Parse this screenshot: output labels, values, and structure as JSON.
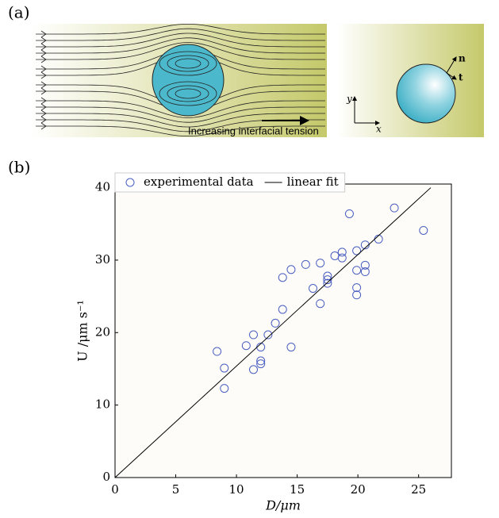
{
  "figure": {
    "panel_a": "(a)",
    "panel_b": "(b)",
    "arrow_text": "Increasing interfacial tension",
    "normal": "n",
    "tangent": "t",
    "y_axis": "y",
    "x_axis": "x"
  },
  "chart_data": {
    "type": "scatter",
    "xlabel": "D/μm",
    "ylabel": "U /μm s⁻¹",
    "xlim": [
      0,
      27.7
    ],
    "ylim": [
      0,
      40.5
    ],
    "xticks": [
      0,
      5,
      10,
      15,
      20,
      25
    ],
    "yticks": [
      0,
      10,
      20,
      30,
      40
    ],
    "legend": "top",
    "series": [
      {
        "name": "experimental data",
        "color": "#4a5fc1",
        "x": [
          8.4,
          9.0,
          9.0,
          11.4,
          11.4,
          10.8,
          12.0,
          12.0,
          12.0,
          12.6,
          13.2,
          13.8,
          13.8,
          14.5,
          14.5,
          15.7,
          16.3,
          16.9,
          16.9,
          17.5,
          17.5,
          17.5,
          18.1,
          18.7,
          18.7,
          19.3,
          19.9,
          19.9,
          19.9,
          19.9,
          20.6,
          20.6,
          20.6,
          21.7,
          23.0,
          25.4
        ],
        "values": [
          17.4,
          15.1,
          12.3,
          14.9,
          19.7,
          18.2,
          18.0,
          16.1,
          15.7,
          19.7,
          21.3,
          23.2,
          27.6,
          28.7,
          18.0,
          29.4,
          26.1,
          29.6,
          24.0,
          26.8,
          27.3,
          27.8,
          30.6,
          30.3,
          31.1,
          36.4,
          31.3,
          28.6,
          26.2,
          25.2,
          32.1,
          29.3,
          28.4,
          32.9,
          37.2,
          34.1
        ]
      },
      {
        "name": "linear fit",
        "color": "#000000",
        "line": true,
        "x": [
          0,
          26.0
        ],
        "values": [
          0,
          40
        ]
      }
    ]
  }
}
